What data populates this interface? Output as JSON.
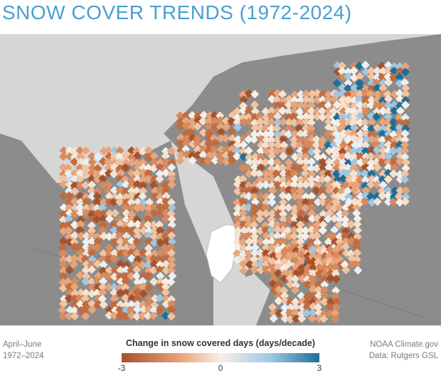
{
  "title": "SNOW COVER TRENDS (1972-2024)",
  "footer": {
    "season": "April–June",
    "years": "1972–2024",
    "credit": "NOAA Climate.gov",
    "source": "Data: Rutgers GSL"
  },
  "legend": {
    "title": "Change in snow covered days (days/decade)",
    "ticks": [
      "-3",
      "0",
      "3"
    ],
    "tick_values": [
      -3,
      0,
      3
    ],
    "range": [
      -3,
      3
    ],
    "colors": {
      "neg_strong": "#a8512a",
      "neg": "#e9a479",
      "neutral": "#f7efe6",
      "pos": "#9fc8e2",
      "pos_strong": "#1d6f9a"
    }
  },
  "map": {
    "land_color": "#8c8c8c",
    "ocean_color": "#d6d6d6",
    "greenland_color": "#ffffff",
    "border_color": "#6f6f6f"
  }
}
